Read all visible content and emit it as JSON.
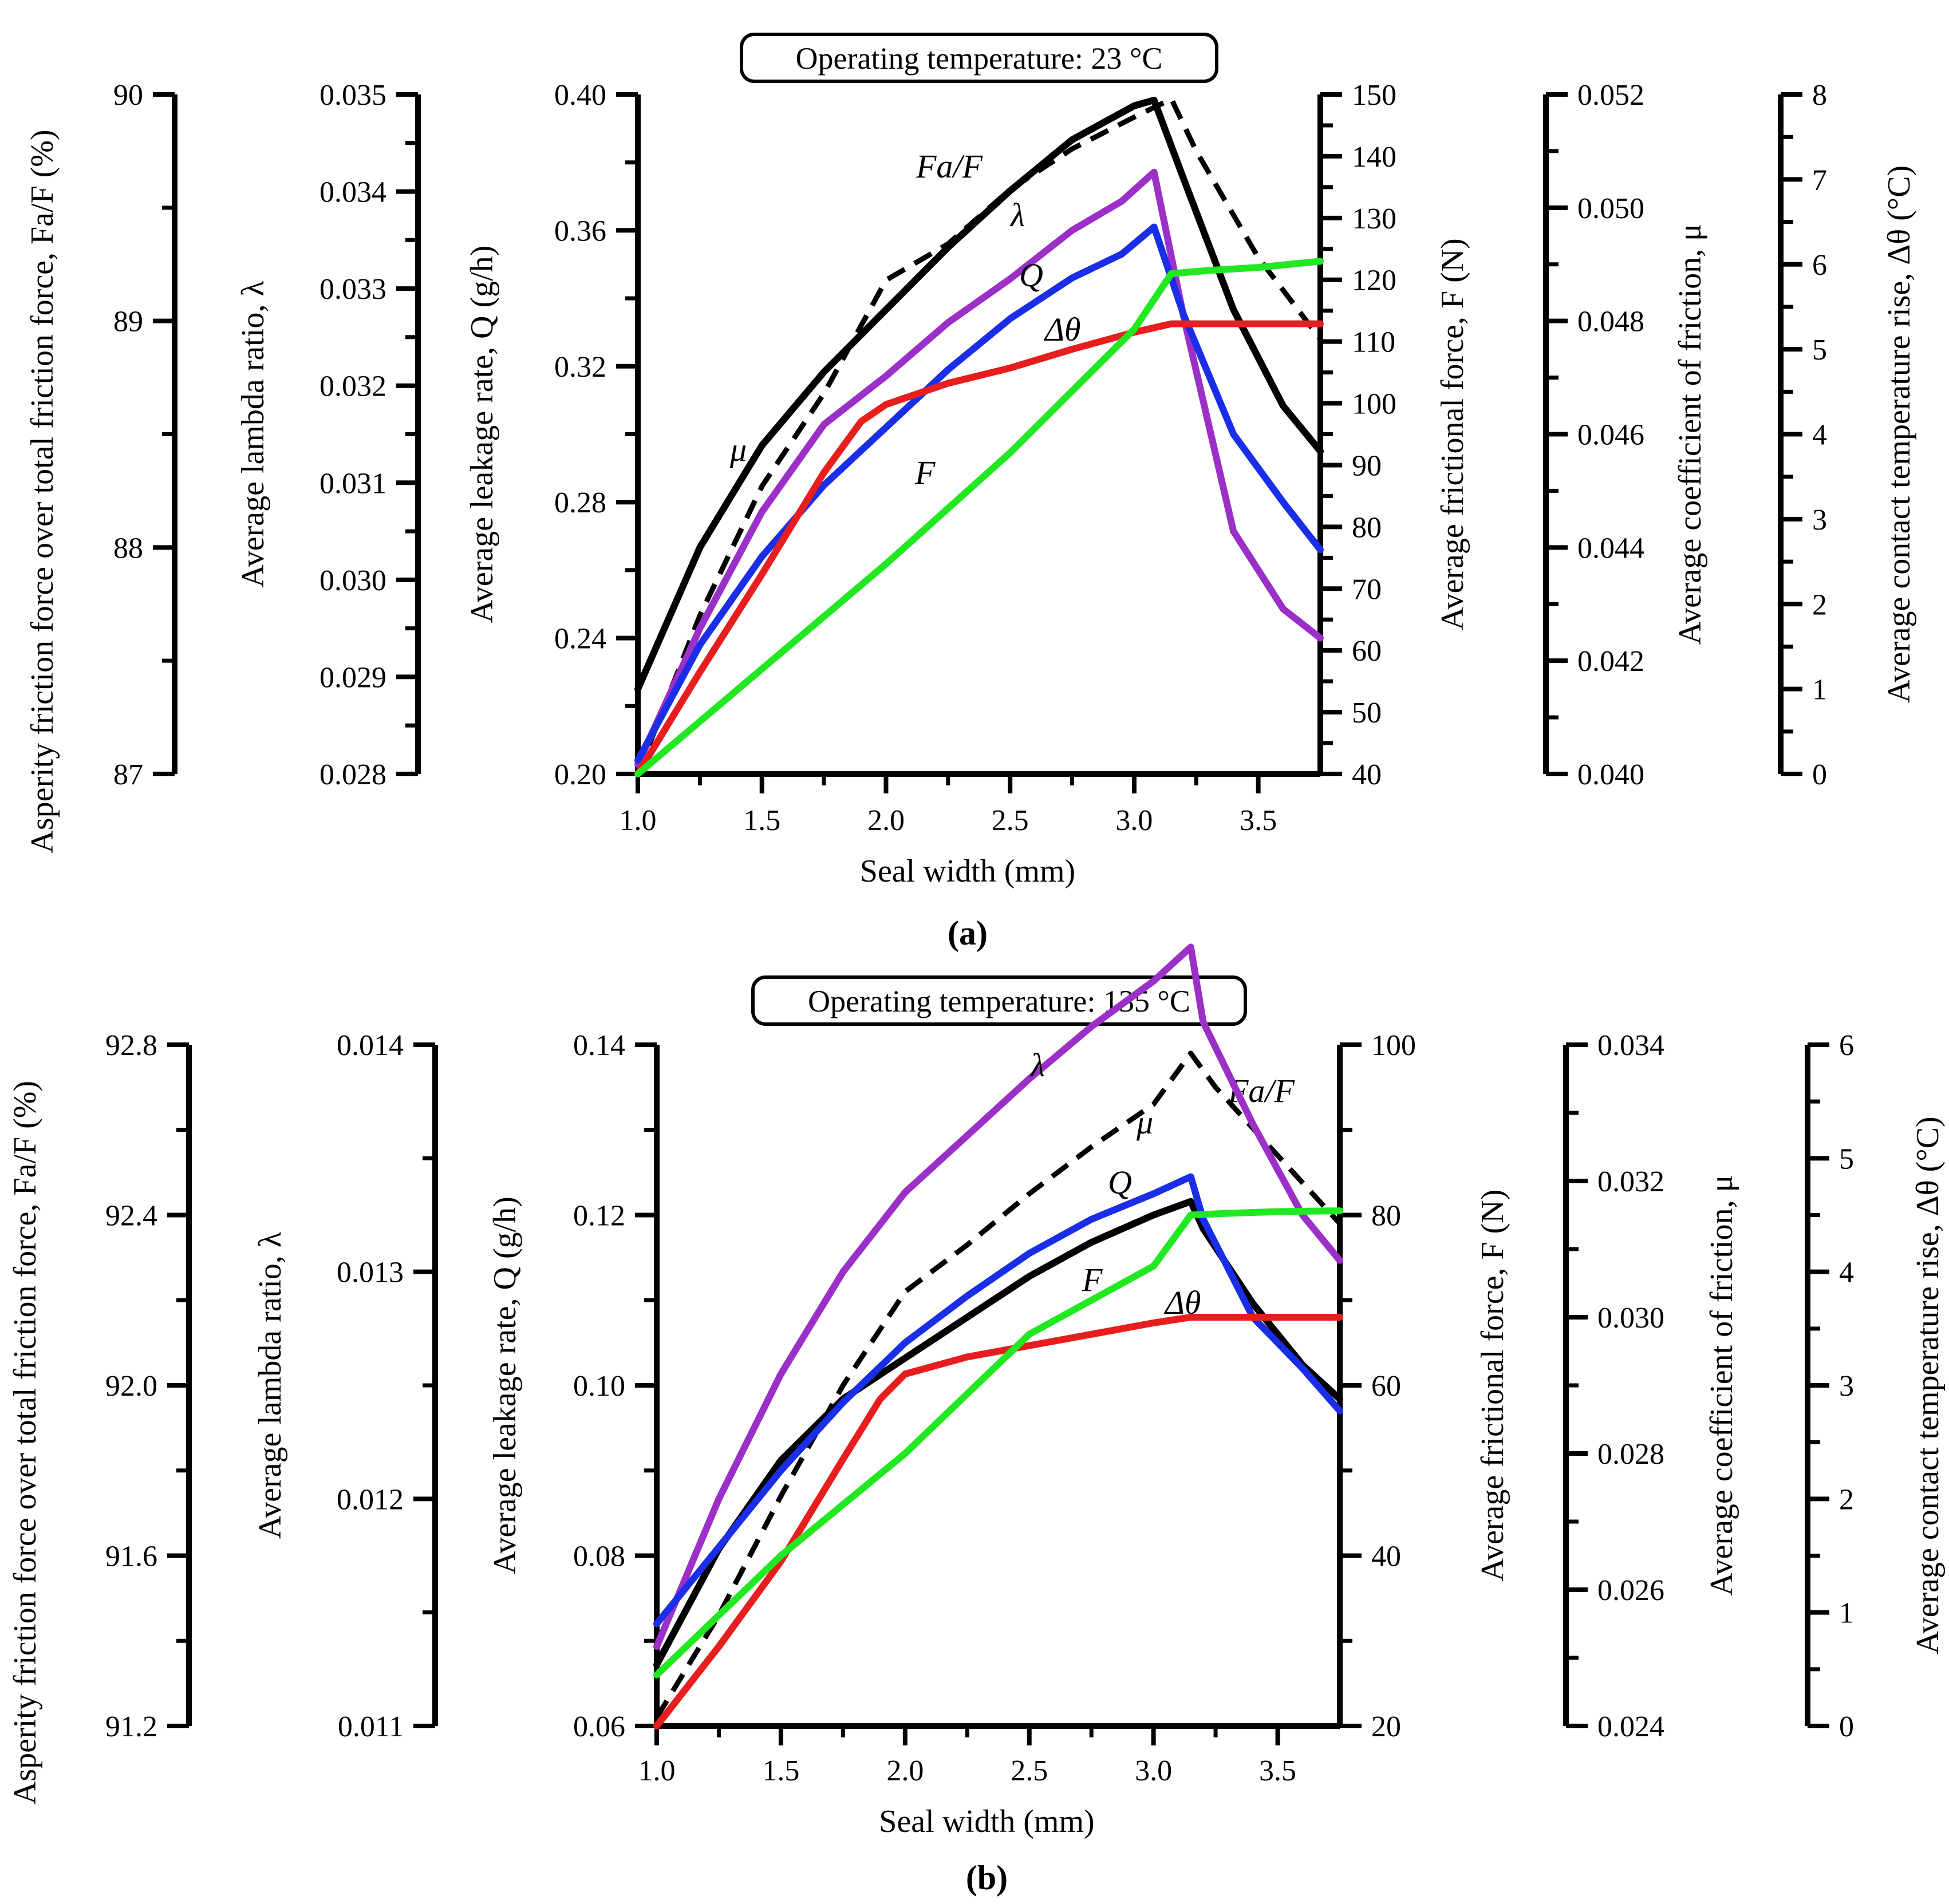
{
  "chart_data": [
    {
      "type": "line",
      "panel": "a",
      "caption": "(a)",
      "title": "Operating temperature: 23 °C",
      "xlabel": "Seal width (mm)",
      "xlim": [
        1.0,
        3.75
      ],
      "xticks": [
        "1.0",
        "1.5",
        "2.0",
        "2.5",
        "3.0",
        "3.5"
      ],
      "axes": [
        {
          "id": "fa",
          "label": "Asperity friction force over total friction force, Fa/F (%)",
          "side": "left",
          "range": [
            87,
            90
          ],
          "ticks": [
            "87",
            "88",
            "89",
            "90"
          ]
        },
        {
          "id": "lambda",
          "label": "Average lambda ratio, λ",
          "side": "left",
          "range": [
            0.028,
            0.035
          ],
          "ticks": [
            "0.028",
            "0.029",
            "0.030",
            "0.031",
            "0.032",
            "0.033",
            "0.034",
            "0.035"
          ]
        },
        {
          "id": "q",
          "label": "Average leakage rate, Q (g/h)",
          "side": "left",
          "range": [
            0.2,
            0.4
          ],
          "ticks": [
            "0.20",
            "0.24",
            "0.28",
            "0.32",
            "0.36",
            "0.40"
          ]
        },
        {
          "id": "f",
          "label": "Average frictional force, F (N)",
          "side": "right",
          "range": [
            40,
            150
          ],
          "ticks": [
            "40",
            "50",
            "60",
            "70",
            "80",
            "90",
            "100",
            "110",
            "120",
            "130",
            "140",
            "150"
          ]
        },
        {
          "id": "mu",
          "label": "Average coefficient of friction, μ",
          "side": "right",
          "range": [
            0.04,
            0.052
          ],
          "ticks": [
            "0.040",
            "0.042",
            "0.044",
            "0.046",
            "0.048",
            "0.050",
            "0.052"
          ]
        },
        {
          "id": "dt",
          "label": "Average contact temperature rise, Δθ (°C)",
          "side": "right",
          "range": [
            0,
            8
          ],
          "ticks": [
            "0",
            "1",
            "2",
            "3",
            "4",
            "5",
            "6",
            "7",
            "8"
          ]
        }
      ],
      "series": [
        {
          "name": "Fa/F",
          "axis": "fa",
          "color": "#000000",
          "dashed": true,
          "x": [
            1.0,
            1.25,
            1.5,
            1.75,
            2.0,
            2.25,
            2.5,
            2.75,
            3.0,
            3.15,
            3.25,
            3.5,
            3.75
          ],
          "values": [
            87.0,
            87.7,
            88.27,
            88.68,
            89.18,
            89.34,
            89.58,
            89.76,
            89.9,
            89.98,
            89.75,
            89.28,
            88.92
          ]
        },
        {
          "name": "μ",
          "axis": "mu",
          "color": "#000000",
          "dashed": false,
          "x": [
            1.0,
            1.25,
            1.5,
            1.75,
            2.0,
            2.25,
            2.5,
            2.75,
            3.0,
            3.08,
            3.2,
            3.4,
            3.6,
            3.75
          ],
          "values": [
            0.0415,
            0.044,
            0.0458,
            0.0471,
            0.0482,
            0.0493,
            0.0503,
            0.0512,
            0.0518,
            0.0519,
            0.0505,
            0.0482,
            0.0465,
            0.0457
          ]
        },
        {
          "name": "λ",
          "axis": "lambda",
          "color": "#9b30c8",
          "dashed": false,
          "x": [
            1.0,
            1.25,
            1.5,
            1.75,
            2.0,
            2.25,
            2.5,
            2.75,
            2.95,
            3.08,
            3.2,
            3.4,
            3.6,
            3.75
          ],
          "values": [
            0.0281,
            0.0295,
            0.0307,
            0.0316,
            0.0321,
            0.03265,
            0.0331,
            0.0336,
            0.0339,
            0.0342,
            0.0327,
            0.0305,
            0.0297,
            0.0294
          ]
        },
        {
          "name": "Q",
          "axis": "q",
          "color": "#1a2ee8",
          "dashed": false,
          "x": [
            1.0,
            1.25,
            1.5,
            1.75,
            2.0,
            2.25,
            2.5,
            2.75,
            2.95,
            3.08,
            3.2,
            3.4,
            3.6,
            3.75
          ],
          "values": [
            0.204,
            0.238,
            0.264,
            0.285,
            0.302,
            0.319,
            0.334,
            0.346,
            0.353,
            0.361,
            0.335,
            0.3,
            0.28,
            0.266
          ]
        },
        {
          "name": "Δθ",
          "axis": "dt",
          "color": "#e81e1e",
          "dashed": false,
          "x": [
            1.0,
            1.25,
            1.5,
            1.75,
            1.9,
            2.0,
            2.25,
            2.5,
            2.75,
            3.0,
            3.15,
            3.5,
            3.75
          ],
          "values": [
            0.0,
            1.2,
            2.35,
            3.55,
            4.15,
            4.35,
            4.6,
            4.78,
            5.0,
            5.2,
            5.3,
            5.3,
            5.3
          ]
        },
        {
          "name": "F",
          "axis": "f",
          "color": "#22e822",
          "dashed": false,
          "x": [
            1.0,
            1.5,
            2.0,
            2.5,
            3.0,
            3.15,
            3.3,
            3.5,
            3.75
          ],
          "values": [
            40,
            57,
            74,
            92,
            112,
            121,
            121.5,
            122,
            123
          ]
        }
      ]
    },
    {
      "type": "line",
      "panel": "b",
      "caption": "(b)",
      "title": "Operating temperature: 135 °C",
      "xlabel": "Seal width (mm)",
      "xlim": [
        1.0,
        3.75
      ],
      "xticks": [
        "1.0",
        "1.5",
        "2.0",
        "2.5",
        "3.0",
        "3.5"
      ],
      "axes": [
        {
          "id": "fa",
          "label": "Asperity friction force over total friction force, Fa/F (%)",
          "side": "left",
          "range": [
            91.2,
            92.8
          ],
          "ticks": [
            "91.2",
            "91.6",
            "92.0",
            "92.4",
            "92.8"
          ]
        },
        {
          "id": "lambda",
          "label": "Average lambda ratio, λ",
          "side": "left",
          "range": [
            0.011,
            0.014
          ],
          "ticks": [
            "0.011",
            "0.012",
            "0.013",
            "0.014"
          ]
        },
        {
          "id": "q",
          "label": "Average leakage rate, Q (g/h)",
          "side": "left",
          "range": [
            0.06,
            0.14
          ],
          "ticks": [
            "0.06",
            "0.08",
            "0.10",
            "0.12",
            "0.14"
          ]
        },
        {
          "id": "f",
          "label": "Average frictional force, F (N)",
          "side": "right",
          "range": [
            20,
            100
          ],
          "ticks": [
            "20",
            "40",
            "60",
            "80",
            "100"
          ]
        },
        {
          "id": "mu",
          "label": "Average coefficient of friction, μ",
          "side": "right",
          "range": [
            0.024,
            0.034
          ],
          "ticks": [
            "0.024",
            "0.026",
            "0.028",
            "0.030",
            "0.032",
            "0.034"
          ]
        },
        {
          "id": "dt",
          "label": "Average contact temperature rise, Δθ (°C)",
          "side": "right",
          "range": [
            0,
            6
          ],
          "ticks": [
            "0",
            "1",
            "2",
            "3",
            "4",
            "5",
            "6"
          ]
        }
      ],
      "series": [
        {
          "name": "Fa/F",
          "axis": "fa",
          "color": "#000000",
          "dashed": true,
          "x": [
            1.0,
            1.25,
            1.5,
            1.75,
            2.0,
            2.25,
            2.5,
            2.75,
            3.0,
            3.15,
            3.25,
            3.5,
            3.75
          ],
          "values": [
            91.22,
            91.46,
            91.74,
            92.0,
            92.22,
            92.33,
            92.45,
            92.56,
            92.66,
            92.78,
            92.7,
            92.54,
            92.38
          ]
        },
        {
          "name": "μ",
          "axis": "mu",
          "color": "#000000",
          "dashed": false,
          "x": [
            1.0,
            1.25,
            1.5,
            1.75,
            2.0,
            2.25,
            2.5,
            2.75,
            3.0,
            3.15,
            3.2,
            3.4,
            3.6,
            3.75
          ],
          "values": [
            0.0249,
            0.0266,
            0.0279,
            0.0288,
            0.0294,
            0.03,
            0.0306,
            0.0311,
            0.0315,
            0.0317,
            0.0313,
            0.0302,
            0.0293,
            0.0288
          ]
        },
        {
          "name": "λ",
          "axis": "lambda",
          "color": "#9b30c8",
          "dashed": false,
          "x": [
            1.0,
            1.25,
            1.5,
            1.75,
            2.0,
            2.25,
            2.5,
            2.75,
            3.0,
            3.15,
            3.2,
            3.4,
            3.6,
            3.75
          ],
          "values": [
            0.01135,
            0.012,
            0.01255,
            0.013,
            0.01335,
            0.0136,
            0.01385,
            0.01408,
            0.01428,
            0.01443,
            0.0141,
            0.01365,
            0.01325,
            0.01305
          ]
        },
        {
          "name": "Q",
          "axis": "q",
          "color": "#1a2ee8",
          "dashed": false,
          "x": [
            1.0,
            1.25,
            1.5,
            1.75,
            2.0,
            2.25,
            2.5,
            2.75,
            3.0,
            3.15,
            3.2,
            3.4,
            3.6,
            3.75
          ],
          "values": [
            0.072,
            0.081,
            0.09,
            0.098,
            0.105,
            0.1105,
            0.1155,
            0.1195,
            0.1225,
            0.1245,
            0.1195,
            0.108,
            0.102,
            0.097
          ]
        },
        {
          "name": "Δθ",
          "axis": "dt",
          "color": "#e81e1e",
          "dashed": false,
          "x": [
            1.0,
            1.25,
            1.5,
            1.75,
            1.9,
            2.0,
            2.25,
            2.5,
            2.75,
            3.0,
            3.15,
            3.5,
            3.75
          ],
          "values": [
            0.0,
            0.7,
            1.45,
            2.35,
            2.88,
            3.1,
            3.25,
            3.35,
            3.45,
            3.55,
            3.6,
            3.6,
            3.6
          ]
        },
        {
          "name": "F",
          "axis": "f",
          "color": "#22e822",
          "dashed": false,
          "x": [
            1.0,
            1.5,
            2.0,
            2.5,
            3.0,
            3.15,
            3.3,
            3.5,
            3.75
          ],
          "values": [
            26,
            40,
            52,
            66,
            74,
            80,
            80.2,
            80.4,
            80.5
          ]
        }
      ]
    }
  ]
}
